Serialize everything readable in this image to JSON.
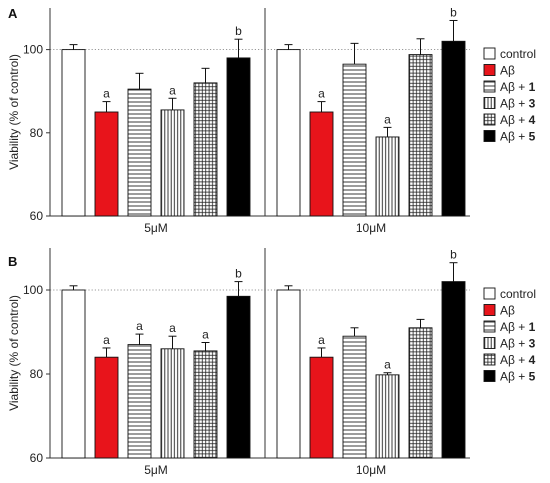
{
  "patterns": {
    "control": "white",
    "Ab": "red",
    "Ab1": "hstripes",
    "Ab3": "vstripes",
    "Ab4": "grid",
    "Ab5": "black"
  },
  "colors": {
    "red": "#e8141b",
    "black": "#000000",
    "axis": "#333333",
    "reference_line": "#777777"
  },
  "legend": [
    {
      "key": "control",
      "label": "control",
      "suffix": ""
    },
    {
      "key": "Ab",
      "label": "Aβ",
      "suffix": ""
    },
    {
      "key": "Ab1",
      "label": "Aβ + ",
      "suffix": "1"
    },
    {
      "key": "Ab3",
      "label": "Aβ + ",
      "suffix": "3"
    },
    {
      "key": "Ab4",
      "label": "Aβ + ",
      "suffix": "4"
    },
    {
      "key": "Ab5",
      "label": "Aβ + ",
      "suffix": "5"
    }
  ],
  "chart_data": [
    {
      "type": "bar",
      "panel": "A",
      "ylabel": "Viability (% of control)",
      "ylim": [
        60,
        110
      ],
      "yticks": [
        60,
        80,
        100
      ],
      "reference_line": 100,
      "groups": [
        {
          "label": "5μM",
          "bars": [
            {
              "key": "control",
              "value": 100,
              "error": 1.2,
              "annotation": ""
            },
            {
              "key": "Ab",
              "value": 85,
              "error": 2.5,
              "annotation": "a"
            },
            {
              "key": "Ab1",
              "value": 90.5,
              "error": 3.8,
              "annotation": ""
            },
            {
              "key": "Ab3",
              "value": 85.5,
              "error": 2.8,
              "annotation": "a"
            },
            {
              "key": "Ab4",
              "value": 92,
              "error": 3.5,
              "annotation": ""
            },
            {
              "key": "Ab5",
              "value": 98,
              "error": 4.5,
              "annotation": "b"
            }
          ]
        },
        {
          "label": "10μM",
          "bars": [
            {
              "key": "control",
              "value": 100,
              "error": 1.2,
              "annotation": ""
            },
            {
              "key": "Ab",
              "value": 85,
              "error": 2.5,
              "annotation": "a"
            },
            {
              "key": "Ab1",
              "value": 96.5,
              "error": 5,
              "annotation": ""
            },
            {
              "key": "Ab3",
              "value": 79,
              "error": 2.3,
              "annotation": "a"
            },
            {
              "key": "Ab4",
              "value": 98.8,
              "error": 3.8,
              "annotation": ""
            },
            {
              "key": "Ab5",
              "value": 102,
              "error": 5,
              "annotation": "b"
            }
          ]
        }
      ]
    },
    {
      "type": "bar",
      "panel": "B",
      "ylabel": "Viability (% of control)",
      "ylim": [
        60,
        110
      ],
      "yticks": [
        60,
        80,
        100
      ],
      "reference_line": 100,
      "groups": [
        {
          "label": "5μM",
          "bars": [
            {
              "key": "control",
              "value": 100,
              "error": 1,
              "annotation": ""
            },
            {
              "key": "Ab",
              "value": 84,
              "error": 2.2,
              "annotation": "a"
            },
            {
              "key": "Ab1",
              "value": 87,
              "error": 2.5,
              "annotation": "a"
            },
            {
              "key": "Ab3",
              "value": 86,
              "error": 3,
              "annotation": "a"
            },
            {
              "key": "Ab4",
              "value": 85.5,
              "error": 2,
              "annotation": "a"
            },
            {
              "key": "Ab5",
              "value": 98.5,
              "error": 3.5,
              "annotation": "b"
            }
          ]
        },
        {
          "label": "10μM",
          "bars": [
            {
              "key": "control",
              "value": 100,
              "error": 1,
              "annotation": ""
            },
            {
              "key": "Ab",
              "value": 84,
              "error": 2.2,
              "annotation": "a"
            },
            {
              "key": "Ab1",
              "value": 89,
              "error": 2,
              "annotation": ""
            },
            {
              "key": "Ab3",
              "value": 79.8,
              "error": 0.5,
              "annotation": "a"
            },
            {
              "key": "Ab4",
              "value": 91,
              "error": 2,
              "annotation": ""
            },
            {
              "key": "Ab5",
              "value": 102,
              "error": 4.5,
              "annotation": "b"
            }
          ]
        }
      ]
    }
  ]
}
